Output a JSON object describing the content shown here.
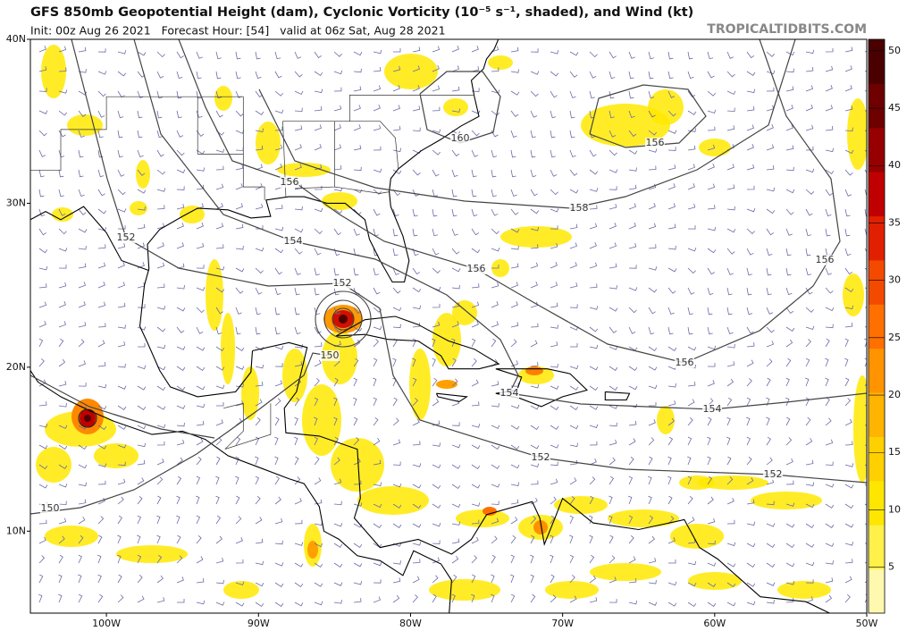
{
  "header": {
    "title": "GFS 850mb Geopotential Height (dam), Cyclonic Vorticity (10⁻⁵ s⁻¹, shaded), and Wind (kt)",
    "subtitle": "Init: 00z Aug 26 2021   Forecast Hour: [54]   valid at 06z Sat, Aug 28 2021",
    "brand": "TROPICALTIDBITS.COM"
  },
  "map": {
    "lat_ticks": [
      {
        "value": 40,
        "label": "40N"
      },
      {
        "value": 30,
        "label": "30N"
      },
      {
        "value": 20,
        "label": "20N"
      },
      {
        "value": 10,
        "label": "10N"
      }
    ],
    "lon_ticks": [
      {
        "value": -100,
        "label": "100W"
      },
      {
        "value": -90,
        "label": "90W"
      },
      {
        "value": -80,
        "label": "80W"
      },
      {
        "value": -70,
        "label": "70W"
      },
      {
        "value": -60,
        "label": "60W"
      },
      {
        "value": -50,
        "label": "50W"
      }
    ],
    "contour_labels": [
      160,
      156,
      158,
      156,
      152,
      154,
      156,
      156,
      152,
      150,
      156,
      154,
      154,
      152,
      152,
      150
    ]
  },
  "colorbar": {
    "lim": [
      1,
      51
    ],
    "ticks": [
      5,
      10,
      15,
      20,
      25,
      30,
      35,
      40,
      45,
      50
    ],
    "colors": [
      "#fff9b0",
      "#fff04a",
      "#ffe600",
      "#ffd000",
      "#ffb400",
      "#ff9400",
      "#ff7000",
      "#f44a00",
      "#e02000",
      "#c00000",
      "#960000",
      "#6e0000",
      "#4a0000"
    ]
  }
}
